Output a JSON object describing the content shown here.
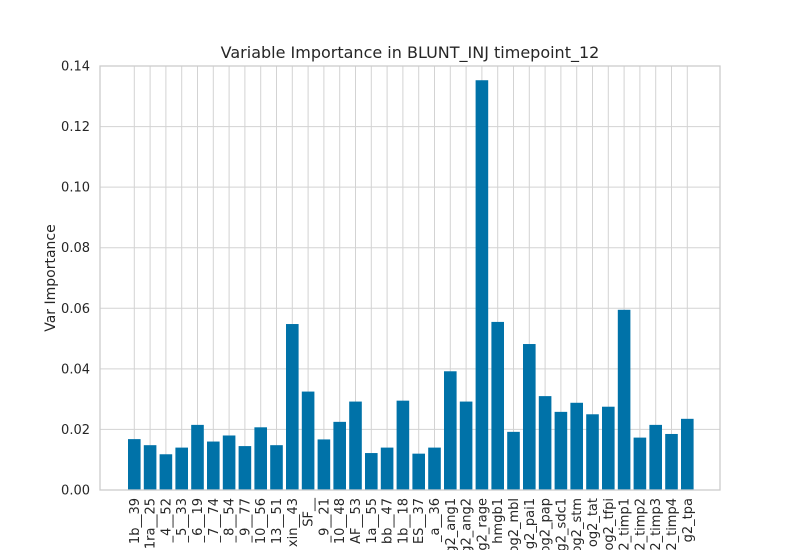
{
  "chart_data": {
    "type": "bar",
    "title": "Variable Importance in BLUNT_INJ timepoint_12",
    "xlabel": "",
    "ylabel": "Var Importance",
    "ylim": [
      0,
      0.14
    ],
    "yticks": [
      "0.00",
      "0.02",
      "0.04",
      "0.06",
      "0.08",
      "0.10",
      "0.12",
      "0.14"
    ],
    "grid": true,
    "bar_color": "#0072a8",
    "categories": [
      "1b__39",
      "1ra__25",
      "_4__52",
      "_5__33",
      "_6__19",
      "_7__74",
      "_8__54",
      "_9__77",
      "10__56",
      "13__51",
      "xin__43",
      "SF__",
      "_9__21",
      "10__48",
      "AF__53",
      "1a__55",
      "bb__47",
      "1b__18",
      "ES__37",
      "_a__36",
      "g2_ang1",
      "g2_ang2",
      "g2_rage",
      "hmgb1",
      "og2_mbl",
      "og2_pai1",
      "og2_pap",
      "g2_sdc1",
      "og2_stm",
      "og2_tat",
      "og2_tfpi",
      "2_timp1",
      "2_timp2",
      "2_timp3",
      "2_timp4",
      "g2_tpa"
    ],
    "values": [
      0.0168,
      0.0148,
      0.0118,
      0.014,
      0.0215,
      0.016,
      0.018,
      0.0145,
      0.0207,
      0.0148,
      0.0548,
      0.0325,
      0.0167,
      0.0225,
      0.0292,
      0.0122,
      0.014,
      0.0295,
      0.012,
      0.014,
      0.0392,
      0.0292,
      0.1353,
      0.0555,
      0.0192,
      0.0482,
      0.031,
      0.0258,
      0.0288,
      0.025,
      0.0275,
      0.0595,
      0.0173,
      0.0215,
      0.0185,
      0.0235
    ]
  }
}
